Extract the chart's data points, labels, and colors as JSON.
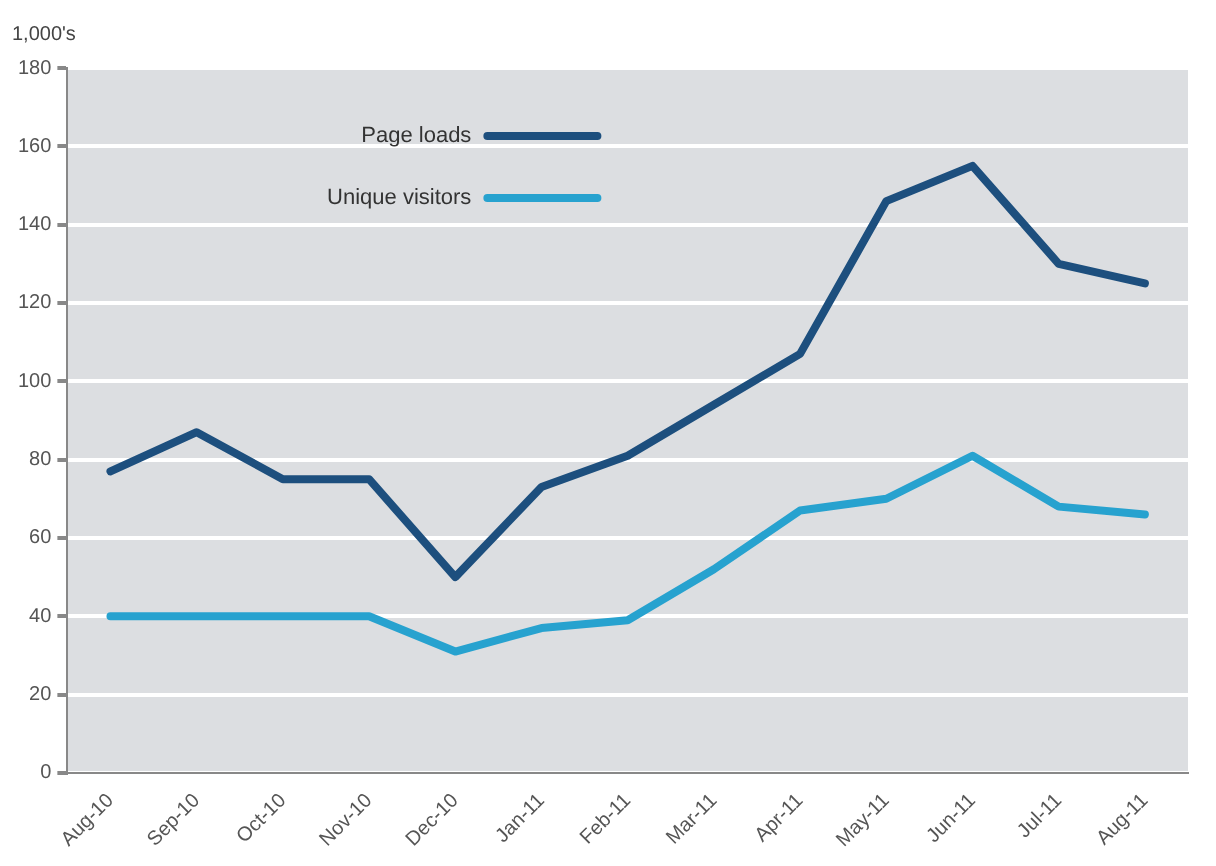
{
  "chart_data": {
    "type": "line",
    "ylabel": "1,000's",
    "categories": [
      "Aug-10",
      "Sep-10",
      "Oct-10",
      "Nov-10",
      "Dec-10",
      "Jan-11",
      "Feb-11",
      "Mar-11",
      "Apr-11",
      "May-11",
      "Jun-11",
      "Jul-11",
      "Aug-11"
    ],
    "series": [
      {
        "name": "Page loads",
        "color": "#1d4f7e",
        "values": [
          77,
          87,
          75,
          75,
          50,
          73,
          81,
          94,
          107,
          146,
          155,
          130,
          125
        ]
      },
      {
        "name": "Unique visitors",
        "color": "#27a2cf",
        "values": [
          40,
          40,
          40,
          40,
          31,
          37,
          39,
          52,
          67,
          70,
          81,
          68,
          66
        ]
      }
    ],
    "ylim": [
      0,
      180
    ],
    "yticks": [
      0,
      20,
      40,
      60,
      80,
      100,
      120,
      140,
      160,
      180
    ],
    "grid": "y",
    "legend": "top left",
    "marker": "none",
    "line_style": "solid"
  }
}
